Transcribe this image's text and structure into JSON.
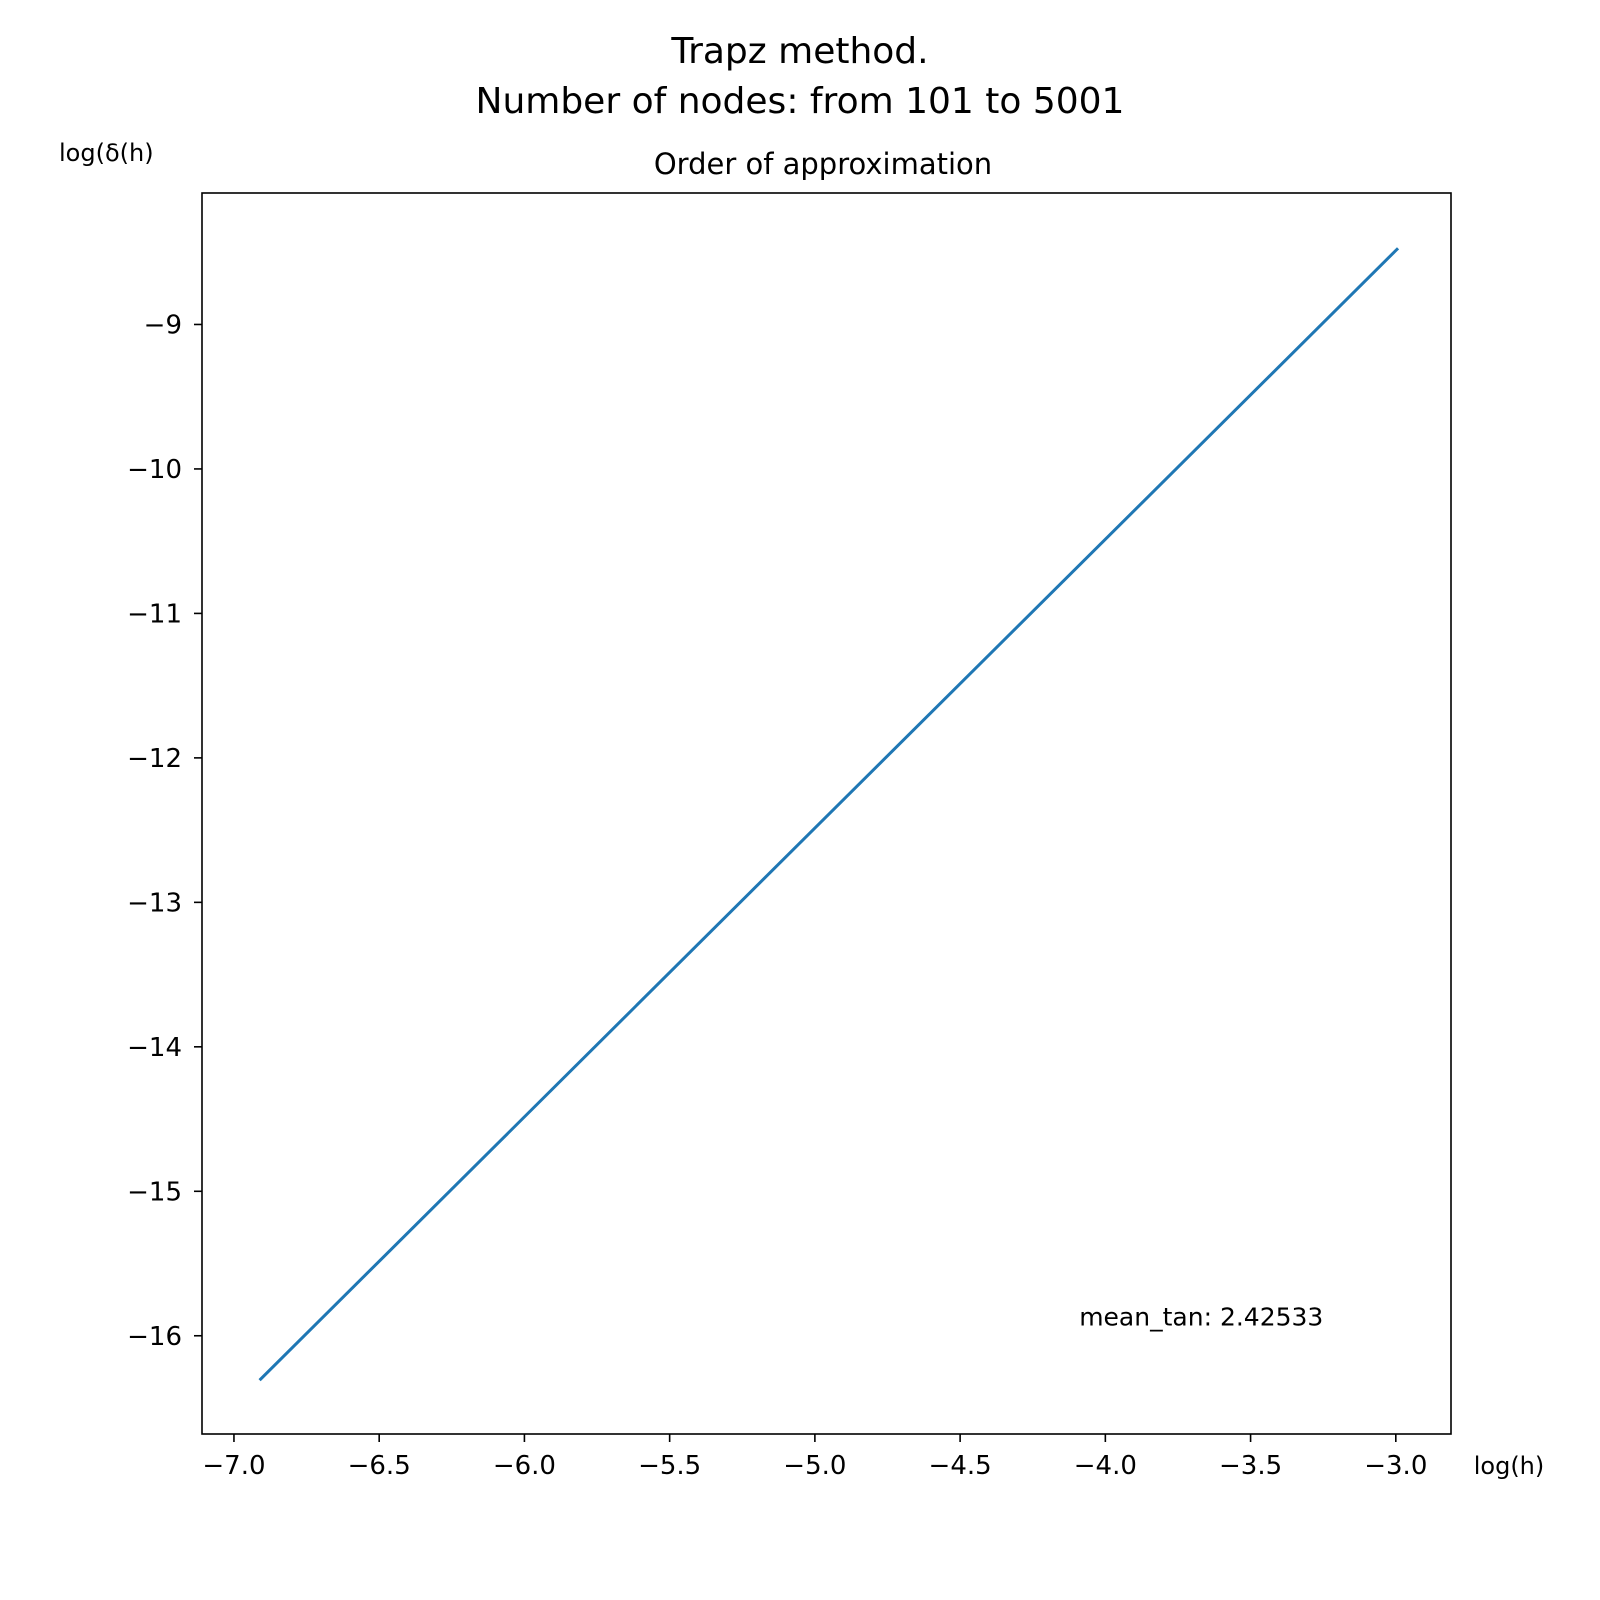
{
  "figure": {
    "suptitle_lines": [
      "Trapz method.",
      "Number of nodes: from 101 to 5001"
    ]
  },
  "chart_data": {
    "type": "line",
    "title": "Order of approximation",
    "xlabel": "log(h)",
    "ylabel": "log(δ(h)",
    "xlim": [
      -7.11,
      -2.81
    ],
    "ylim": [
      -16.68,
      -8.09
    ],
    "xticks": [
      -7.0,
      -6.5,
      -6.0,
      -5.5,
      -5.0,
      -4.5,
      -4.0,
      -3.5,
      -3.0
    ],
    "xtick_labels": [
      "−7.0",
      "−6.5",
      "−6.0",
      "−5.5",
      "−5.0",
      "−4.5",
      "−4.0",
      "−3.5",
      "−3.0"
    ],
    "yticks": [
      -9,
      -10,
      -11,
      -12,
      -13,
      -14,
      -15,
      -16
    ],
    "ytick_labels": [
      "−9",
      "−10",
      "−11",
      "−12",
      "−13",
      "−14",
      "−15",
      "−16"
    ],
    "grid": false,
    "series": [
      {
        "color": "#1f77b4",
        "x": [
          -6.908,
          -2.996
        ],
        "y": [
          -16.3,
          -8.48
        ]
      }
    ],
    "annotations": [
      {
        "text": "mean_tan: 2.42533",
        "x": -4.09,
        "y": -15.93
      }
    ]
  }
}
